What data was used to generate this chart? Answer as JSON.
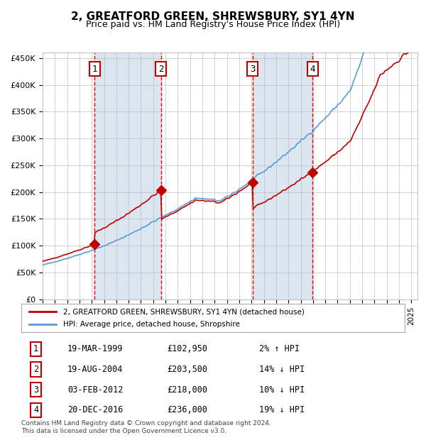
{
  "title": "2, GREATFORD GREEN, SHREWSBURY, SY1 4YN",
  "subtitle": "Price paid vs. HM Land Registry's House Price Index (HPI)",
  "ylabel_ticks": [
    "£0",
    "£50K",
    "£100K",
    "£150K",
    "£200K",
    "£250K",
    "£300K",
    "£350K",
    "£400K",
    "£450K"
  ],
  "ytick_values": [
    0,
    50000,
    100000,
    150000,
    200000,
    250000,
    300000,
    350000,
    400000,
    450000
  ],
  "ylim": [
    0,
    460000
  ],
  "xlim_start": 1995.0,
  "xlim_end": 2025.5,
  "sale_dates": [
    1999.22,
    2004.64,
    2012.09,
    2016.97
  ],
  "sale_prices": [
    102950,
    203500,
    218000,
    236000
  ],
  "sale_labels": [
    "1",
    "2",
    "3",
    "4"
  ],
  "vline_dates": [
    1999.22,
    2004.64,
    2012.09,
    2016.97
  ],
  "legend_line1": "2, GREATFORD GREEN, SHREWSBURY, SY1 4YN (detached house)",
  "legend_line2": "HPI: Average price, detached house, Shropshire",
  "table_rows": [
    [
      "1",
      "19-MAR-1999",
      "£102,950",
      "2% ↑ HPI"
    ],
    [
      "2",
      "19-AUG-2004",
      "£203,500",
      "14% ↓ HPI"
    ],
    [
      "3",
      "03-FEB-2012",
      "£218,000",
      "10% ↓ HPI"
    ],
    [
      "4",
      "20-DEC-2016",
      "£236,000",
      "19% ↓ HPI"
    ]
  ],
  "footnote": "Contains HM Land Registry data © Crown copyright and database right 2024.\nThis data is licensed under the Open Government Licence v3.0.",
  "hpi_color": "#5b9bd5",
  "price_color": "#c00000",
  "bg_color": "#dce6f1",
  "plot_bg": "#ffffff",
  "grid_color": "#c0c0c0",
  "vline_color": "#ff0000",
  "marker_color": "#c00000",
  "box_color": "#c00000"
}
